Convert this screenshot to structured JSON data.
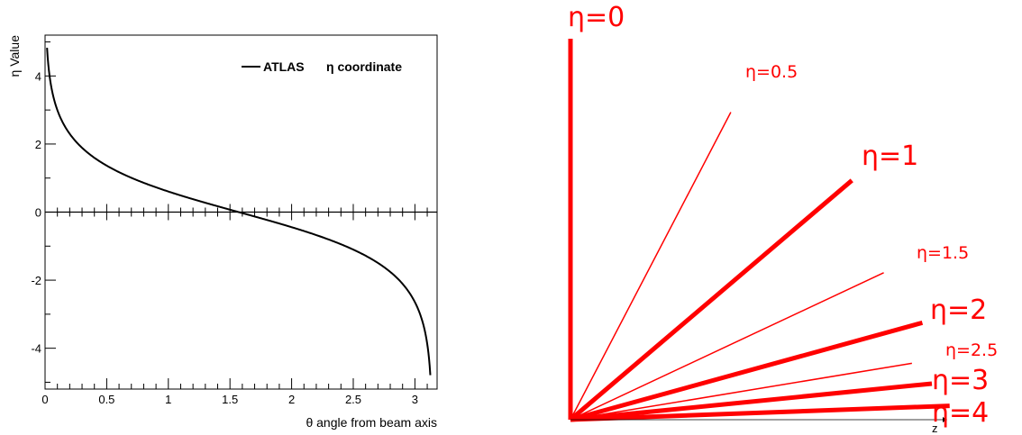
{
  "chart_data": [
    {
      "type": "line",
      "xlabel": "θ angle from beam axis",
      "ylabel": "η Value",
      "xlim": [
        0,
        3.18
      ],
      "ylim": [
        -5.2,
        5.2
      ],
      "xticks": [
        "0",
        "0.5",
        "1",
        "1.5",
        "2",
        "2.5",
        "3"
      ],
      "yticks": [
        "-4",
        "-2",
        "0",
        "2",
        "4"
      ],
      "legend": {
        "label_bold": "ATLAS",
        "label_rest": "η coordinate",
        "position": "top-right"
      },
      "series": [
        {
          "function": "eta = -ln(tan(theta/2))",
          "x_range": [
            0.016,
            3.125
          ]
        }
      ],
      "zero_line": true,
      "grid": false
    },
    {
      "type": "line",
      "xlabel": "z",
      "rays": [
        {
          "label": "η=0",
          "eta": 0,
          "weight": "thick"
        },
        {
          "label": "η=0.5",
          "eta": 0.5,
          "weight": "thin"
        },
        {
          "label": "η=1",
          "eta": 1,
          "weight": "thick"
        },
        {
          "label": "η=1.5",
          "eta": 1.5,
          "weight": "thin"
        },
        {
          "label": "η=2",
          "eta": 2,
          "weight": "thick"
        },
        {
          "label": "η=2.5",
          "eta": 2.5,
          "weight": "thin"
        },
        {
          "label": "η=3",
          "eta": 3,
          "weight": "thick"
        },
        {
          "label": "η=4",
          "eta": 4,
          "weight": "thick"
        }
      ],
      "color": "#ff0000"
    }
  ]
}
